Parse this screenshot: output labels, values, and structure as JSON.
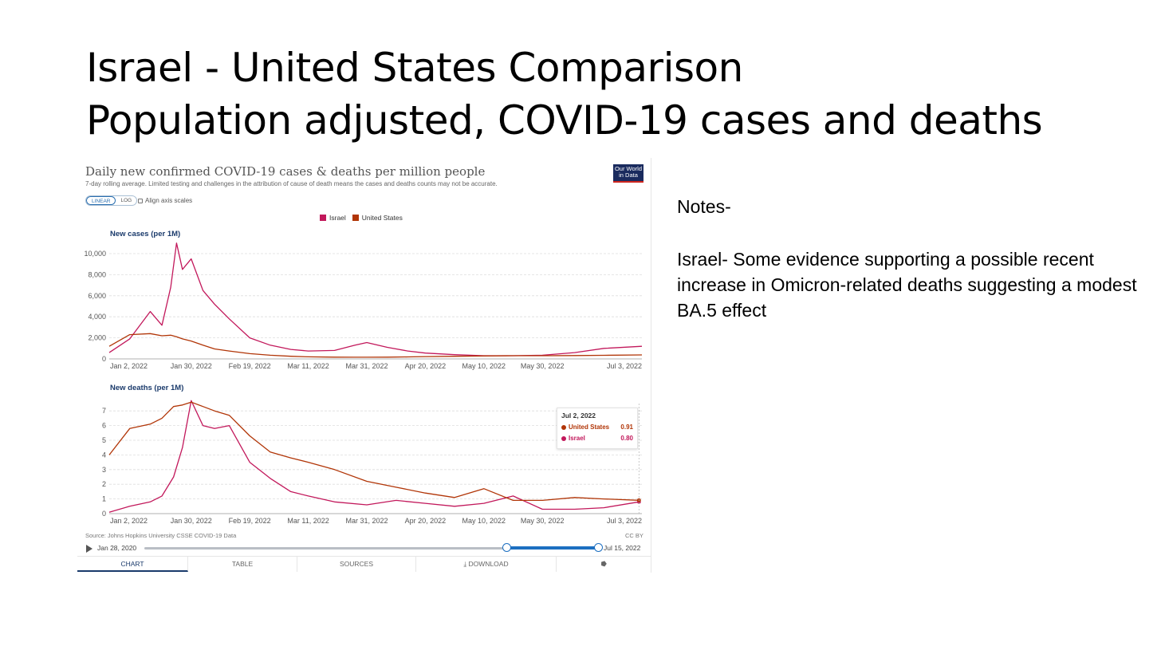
{
  "slide": {
    "title_line1": "Israel - United States Comparison",
    "title_line2": "Population adjusted, COVID-19 cases and deaths"
  },
  "owid": {
    "title": "Daily new confirmed COVID-19 cases & deaths per million people",
    "subtitle": "7-day rolling average. Limited testing and challenges in the attribution of cause of death means the cases and deaths counts may not be accurate.",
    "logo": "Our World in Data",
    "scale": {
      "linear": "LINEAR",
      "log": "LOG"
    },
    "align_label": "Align axis scales",
    "legend": [
      {
        "name": "Israel",
        "color": "#c2185b"
      },
      {
        "name": "United States",
        "color": "#b13507"
      }
    ],
    "tooltip": {
      "date": "Jul 2, 2022",
      "rows": [
        {
          "name": "United States",
          "value": "0.91",
          "color": "#b13507"
        },
        {
          "name": "Israel",
          "value": "0.80",
          "color": "#c2185b"
        }
      ]
    },
    "source": "Source: Johns Hopkins University CSSE COVID-19 Data",
    "license": "CC BY",
    "timeline": {
      "start": "Jan 28, 2020",
      "end": "Jul 15, 2022"
    },
    "tabs": [
      "CHART",
      "TABLE",
      "SOURCES",
      "DOWNLOAD",
      ""
    ]
  },
  "notes": {
    "heading": "Notes-",
    "body": "Israel- Some evidence supporting a possible recent increase in Omicron-related deaths suggesting a modest BA.5 effect"
  },
  "chart_data": [
    {
      "type": "line",
      "title": "New cases (per 1M)",
      "x_ticks": [
        "Jan 2, 2022",
        "Jan 30, 2022",
        "Feb 19, 2022",
        "Mar 11, 2022",
        "Mar 31, 2022",
        "Apr 20, 2022",
        "May 10, 2022",
        "May 30, 2022",
        "Jul 3, 2022"
      ],
      "y_ticks": [
        0,
        2000,
        4000,
        6000,
        8000,
        10000
      ],
      "y_tick_labels": [
        "0",
        "2,000",
        "4,000",
        "6,000",
        "8,000",
        "10,000"
      ],
      "ylim": [
        0,
        10000
      ],
      "grid": true,
      "x": [
        "2022-01-02",
        "2022-01-09",
        "2022-01-16",
        "2022-01-20",
        "2022-01-23",
        "2022-01-25",
        "2022-01-27",
        "2022-01-30",
        "2022-02-03",
        "2022-02-07",
        "2022-02-12",
        "2022-02-19",
        "2022-02-26",
        "2022-03-05",
        "2022-03-11",
        "2022-03-20",
        "2022-03-27",
        "2022-03-31",
        "2022-04-07",
        "2022-04-14",
        "2022-04-20",
        "2022-04-30",
        "2022-05-10",
        "2022-05-20",
        "2022-05-30",
        "2022-06-10",
        "2022-06-20",
        "2022-07-03"
      ],
      "series": [
        {
          "name": "Israel",
          "color": "#c2185b",
          "values": [
            600,
            1900,
            4500,
            3200,
            6800,
            11000,
            8500,
            9500,
            6500,
            5200,
            3800,
            2000,
            1300,
            900,
            750,
            800,
            1300,
            1550,
            1100,
            750,
            550,
            400,
            300,
            300,
            350,
            600,
            1000,
            1200
          ]
        },
        {
          "name": "United States",
          "color": "#b13507",
          "values": [
            1200,
            2300,
            2400,
            2200,
            2250,
            2100,
            1900,
            1700,
            1300,
            950,
            750,
            500,
            350,
            250,
            200,
            170,
            160,
            160,
            170,
            190,
            220,
            250,
            280,
            300,
            300,
            320,
            340,
            380
          ]
        }
      ]
    },
    {
      "type": "line",
      "title": "New deaths (per 1M)",
      "x_ticks": [
        "Jan 2, 2022",
        "Jan 30, 2022",
        "Feb 19, 2022",
        "Mar 11, 2022",
        "Mar 31, 2022",
        "Apr 20, 2022",
        "May 10, 2022",
        "May 30, 2022",
        "Jul 3, 2022"
      ],
      "y_ticks": [
        0,
        1,
        2,
        3,
        4,
        5,
        6,
        7
      ],
      "ylim": [
        0,
        7.5
      ],
      "grid": true,
      "x": [
        "2022-01-02",
        "2022-01-09",
        "2022-01-16",
        "2022-01-20",
        "2022-01-24",
        "2022-01-27",
        "2022-01-30",
        "2022-02-03",
        "2022-02-07",
        "2022-02-12",
        "2022-02-19",
        "2022-02-26",
        "2022-03-05",
        "2022-03-11",
        "2022-03-20",
        "2022-03-31",
        "2022-04-10",
        "2022-04-20",
        "2022-04-30",
        "2022-05-10",
        "2022-05-20",
        "2022-05-30",
        "2022-06-10",
        "2022-06-20",
        "2022-07-02"
      ],
      "series": [
        {
          "name": "Israel",
          "color": "#c2185b",
          "values": [
            0.1,
            0.5,
            0.8,
            1.2,
            2.5,
            4.5,
            7.7,
            6.0,
            5.8,
            6.0,
            3.5,
            2.4,
            1.5,
            1.2,
            0.8,
            0.6,
            0.9,
            0.7,
            0.5,
            0.7,
            1.2,
            0.3,
            0.3,
            0.4,
            0.8
          ]
        },
        {
          "name": "United States",
          "color": "#b13507",
          "values": [
            4.0,
            5.8,
            6.1,
            6.5,
            7.3,
            7.4,
            7.6,
            7.3,
            7.0,
            6.7,
            5.3,
            4.2,
            3.8,
            3.5,
            3.0,
            2.2,
            1.8,
            1.4,
            1.1,
            1.7,
            0.9,
            0.9,
            1.1,
            1.0,
            0.91
          ]
        }
      ]
    }
  ]
}
